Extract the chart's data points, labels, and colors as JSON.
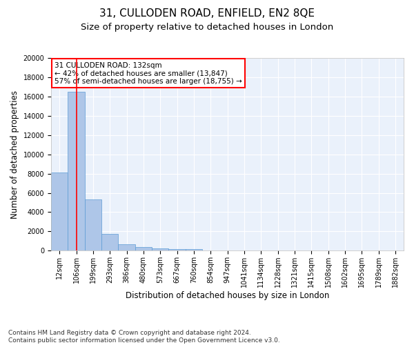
{
  "title_line1": "31, CULLODEN ROAD, ENFIELD, EN2 8QE",
  "title_line2": "Size of property relative to detached houses in London",
  "xlabel": "Distribution of detached houses by size in London",
  "ylabel": "Number of detached properties",
  "categories": [
    "12sqm",
    "106sqm",
    "199sqm",
    "293sqm",
    "386sqm",
    "480sqm",
    "573sqm",
    "667sqm",
    "760sqm",
    "854sqm",
    "947sqm",
    "1041sqm",
    "1134sqm",
    "1228sqm",
    "1321sqm",
    "1415sqm",
    "1508sqm",
    "1602sqm",
    "1695sqm",
    "1789sqm",
    "1882sqm"
  ],
  "values": [
    8100,
    16500,
    5300,
    1750,
    650,
    350,
    270,
    200,
    160,
    0,
    0,
    0,
    0,
    0,
    0,
    0,
    0,
    0,
    0,
    0,
    0
  ],
  "bar_color": "#aec6e8",
  "bar_edge_color": "#5b9bd5",
  "annotation_line1": "31 CULLODEN ROAD: 132sqm",
  "annotation_line2": "← 42% of detached houses are smaller (13,847)",
  "annotation_line3": "57% of semi-detached houses are larger (18,755) →",
  "annotation_box_color": "red",
  "vline_x_index": 1,
  "vline_color": "red",
  "ylim": [
    0,
    20000
  ],
  "yticks": [
    0,
    2000,
    4000,
    6000,
    8000,
    10000,
    12000,
    14000,
    16000,
    18000,
    20000
  ],
  "footnote": "Contains HM Land Registry data © Crown copyright and database right 2024.\nContains public sector information licensed under the Open Government Licence v3.0.",
  "bg_color": "#eaf1fb",
  "grid_color": "#ffffff",
  "title_fontsize": 11,
  "subtitle_fontsize": 9.5,
  "axis_label_fontsize": 8.5,
  "tick_fontsize": 7,
  "footnote_fontsize": 6.5,
  "annotation_fontsize": 7.5
}
